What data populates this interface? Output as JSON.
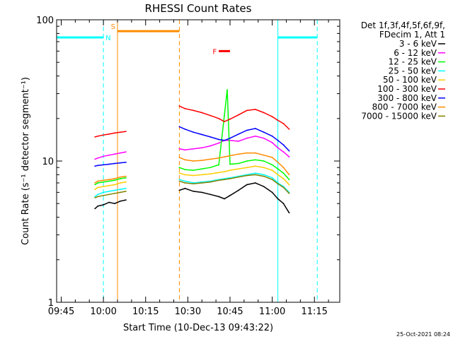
{
  "chart_data": {
    "type": "line",
    "title": "RHESSI Count Rates",
    "xlabel": "Start Time (10-Dec-13 09:43:22)",
    "ylabel": "Count Rate (s⁻¹ detector segment⁻¹)",
    "y_scale": "log",
    "ylim": [
      1,
      100
    ],
    "xlim": [
      "09:43:22",
      "11:24:00"
    ],
    "x_ticks": [
      "09:45",
      "10:00",
      "10:15",
      "10:30",
      "10:45",
      "11:00",
      "11:15"
    ],
    "y_ticks": [
      "1",
      "10",
      "100"
    ],
    "legend": {
      "position": "top-right",
      "header": [
        "Det 1f,3f,4f,5f,6f,9f,",
        "FDecim 1, Att 1"
      ]
    },
    "series": [
      {
        "name": "3 - 6 keV",
        "color": "#000000",
        "x": [
          "09:57",
          "09:58",
          "10:00",
          "10:02",
          "10:04",
          "10:06",
          "10:08",
          "10:27",
          "10:29",
          "10:32",
          "10:35",
          "10:38",
          "10:41",
          "10:43",
          "10:45",
          "10:48",
          "10:51",
          "10:54",
          "10:57",
          "11:00",
          "11:02",
          "11:04",
          "11:06"
        ],
        "y": [
          4.6,
          4.8,
          4.9,
          5.1,
          5.0,
          5.2,
          5.3,
          6.2,
          6.4,
          6.1,
          6.0,
          5.8,
          5.6,
          5.4,
          5.7,
          6.2,
          6.8,
          7.0,
          6.6,
          6.0,
          5.4,
          5.0,
          4.3
        ]
      },
      {
        "name": "6 - 12 keV",
        "color": "#ff00ff",
        "x": [
          "09:57",
          "09:58",
          "10:00",
          "10:02",
          "10:04",
          "10:06",
          "10:08",
          "10:27",
          "10:29",
          "10:32",
          "10:35",
          "10:38",
          "10:41",
          "10:43",
          "10:45",
          "10:48",
          "10:51",
          "10:54",
          "10:57",
          "11:00",
          "11:02",
          "11:04",
          "11:06"
        ],
        "y": [
          10.3,
          10.5,
          10.8,
          11.0,
          11.2,
          11.4,
          11.6,
          12.2,
          12.0,
          12.2,
          12.4,
          12.8,
          13.4,
          14.0,
          14.0,
          13.8,
          14.5,
          15.0,
          14.5,
          13.5,
          12.4,
          11.6,
          10.7
        ]
      },
      {
        "name": "12 - 25 keV",
        "color": "#00ff00",
        "x": [
          "09:57",
          "09:58",
          "10:00",
          "10:02",
          "10:04",
          "10:06",
          "10:08",
          "10:27",
          "10:29",
          "10:32",
          "10:35",
          "10:38",
          "10:41",
          "10:43",
          "10:44",
          "10:45",
          "10:48",
          "10:51",
          "10:54",
          "10:57",
          "11:00",
          "11:02",
          "11:04",
          "11:06"
        ],
        "y": [
          6.8,
          7.0,
          7.1,
          7.2,
          7.3,
          7.5,
          7.6,
          9.0,
          8.7,
          8.6,
          8.8,
          9.0,
          9.4,
          21.0,
          32.0,
          9.5,
          9.6,
          10.0,
          10.2,
          10.0,
          9.4,
          8.8,
          8.2,
          7.4
        ]
      },
      {
        "name": "25 - 50 keV",
        "color": "#00ffff",
        "x": [
          "09:57",
          "09:58",
          "10:00",
          "10:02",
          "10:04",
          "10:06",
          "10:08",
          "10:27",
          "10:29",
          "10:32",
          "10:35",
          "10:38",
          "10:41",
          "10:43",
          "10:45",
          "10:48",
          "10:51",
          "10:54",
          "10:57",
          "11:00",
          "11:02",
          "11:04",
          "11:06"
        ],
        "y": [
          5.6,
          5.8,
          6.0,
          6.1,
          6.2,
          6.3,
          6.4,
          7.4,
          7.2,
          7.0,
          7.1,
          7.2,
          7.4,
          7.5,
          7.6,
          7.8,
          8.0,
          8.2,
          8.0,
          7.6,
          7.0,
          6.6,
          6.0
        ]
      },
      {
        "name": "50 - 100 keV",
        "color": "#ffcc00",
        "x": [
          "09:57",
          "09:58",
          "10:00",
          "10:02",
          "10:04",
          "10:06",
          "10:08",
          "10:27",
          "10:29",
          "10:32",
          "10:35",
          "10:38",
          "10:41",
          "10:43",
          "10:45",
          "10:48",
          "10:51",
          "10:54",
          "10:57",
          "11:00",
          "11:02",
          "11:04",
          "11:06"
        ],
        "y": [
          6.3,
          6.5,
          6.6,
          6.7,
          6.8,
          7.0,
          7.1,
          8.2,
          8.0,
          7.9,
          8.0,
          8.1,
          8.3,
          8.4,
          8.6,
          8.8,
          9.0,
          9.2,
          9.0,
          8.6,
          8.0,
          7.5,
          6.8
        ]
      },
      {
        "name": "100 - 300 keV",
        "color": "#ff0000",
        "x": [
          "09:57",
          "09:58",
          "10:00",
          "10:02",
          "10:04",
          "10:06",
          "10:08",
          "10:27",
          "10:29",
          "10:32",
          "10:35",
          "10:38",
          "10:41",
          "10:43",
          "10:45",
          "10:48",
          "10:51",
          "10:54",
          "10:57",
          "11:00",
          "11:02",
          "11:04",
          "11:06"
        ],
        "y": [
          14.8,
          15.0,
          15.3,
          15.5,
          15.8,
          16.0,
          16.2,
          24.5,
          23.5,
          22.8,
          22.0,
          21.0,
          20.0,
          19.0,
          19.8,
          21.2,
          22.8,
          23.2,
          22.0,
          20.6,
          19.4,
          18.4,
          16.8
        ]
      },
      {
        "name": "300 - 800 keV",
        "color": "#0000ff",
        "x": [
          "09:57",
          "09:58",
          "10:00",
          "10:02",
          "10:04",
          "10:06",
          "10:08",
          "10:27",
          "10:29",
          "10:32",
          "10:35",
          "10:38",
          "10:41",
          "10:43",
          "10:45",
          "10:48",
          "10:51",
          "10:54",
          "10:57",
          "11:00",
          "11:02",
          "11:04",
          "11:06"
        ],
        "y": [
          9.2,
          9.3,
          9.4,
          9.5,
          9.6,
          9.7,
          9.8,
          17.5,
          16.8,
          16.0,
          15.4,
          14.8,
          14.2,
          14.0,
          14.5,
          15.5,
          16.5,
          17.0,
          16.0,
          15.0,
          14.0,
          13.0,
          11.8
        ]
      },
      {
        "name": "800 - 7000 keV",
        "color": "#ff8c00",
        "x": [
          "09:57",
          "09:58",
          "10:00",
          "10:02",
          "10:04",
          "10:06",
          "10:08",
          "10:27",
          "10:29",
          "10:32",
          "10:35",
          "10:38",
          "10:41",
          "10:43",
          "10:45",
          "10:48",
          "10:51",
          "10:54",
          "10:57",
          "11:00",
          "11:02",
          "11:04",
          "11:06"
        ],
        "y": [
          7.0,
          7.2,
          7.3,
          7.4,
          7.5,
          7.7,
          7.8,
          10.6,
          10.2,
          10.0,
          10.1,
          10.3,
          10.5,
          10.7,
          10.9,
          11.2,
          11.4,
          11.4,
          11.0,
          10.6,
          9.8,
          9.0,
          8.0
        ]
      },
      {
        "name": "7000 - 15000 keV",
        "color": "#808000",
        "x": [
          "09:57",
          "09:58",
          "10:00",
          "10:02",
          "10:04",
          "10:06",
          "10:08",
          "10:27",
          "10:29",
          "10:32",
          "10:35",
          "10:38",
          "10:41",
          "10:43",
          "10:45",
          "10:48",
          "10:51",
          "10:54",
          "10:57",
          "11:00",
          "11:02",
          "11:04",
          "11:06"
        ],
        "y": [
          5.5,
          5.6,
          5.7,
          5.8,
          5.9,
          6.0,
          6.1,
          7.2,
          7.0,
          6.9,
          7.0,
          7.1,
          7.3,
          7.4,
          7.5,
          7.7,
          7.9,
          8.0,
          7.8,
          7.4,
          6.9,
          6.5,
          5.9
        ]
      }
    ],
    "annotations": {
      "vertical_lines": [
        {
          "time": "09:43:22",
          "color": "#00ffff",
          "style": "solid"
        },
        {
          "time": "10:00",
          "color": "#00ffff",
          "style": "dashed"
        },
        {
          "time": "10:05",
          "color": "#ff8c00",
          "style": "solid"
        },
        {
          "time": "10:27",
          "color": "#ff8c00",
          "style": "dashed"
        },
        {
          "time": "11:02",
          "color": "#00ffff",
          "style": "solid"
        },
        {
          "time": "11:16",
          "color": "#00ffff",
          "style": "dashed"
        }
      ],
      "segments": [
        {
          "label": "N",
          "color": "#00ffff",
          "start": "09:43:22",
          "end": "10:00",
          "y": 75
        },
        {
          "label": "",
          "color": "#00ffff",
          "start": "11:02",
          "end": "11:16",
          "y": 75
        },
        {
          "label": "S",
          "color": "#ff8c00",
          "start": "10:05",
          "end": "10:27",
          "y": 83
        },
        {
          "label": "F",
          "color": "#ff0000",
          "start": "10:41",
          "end": "10:45",
          "y": 60
        }
      ]
    }
  },
  "footer": {
    "timestamp": "25-Oct-2021 08:24"
  }
}
